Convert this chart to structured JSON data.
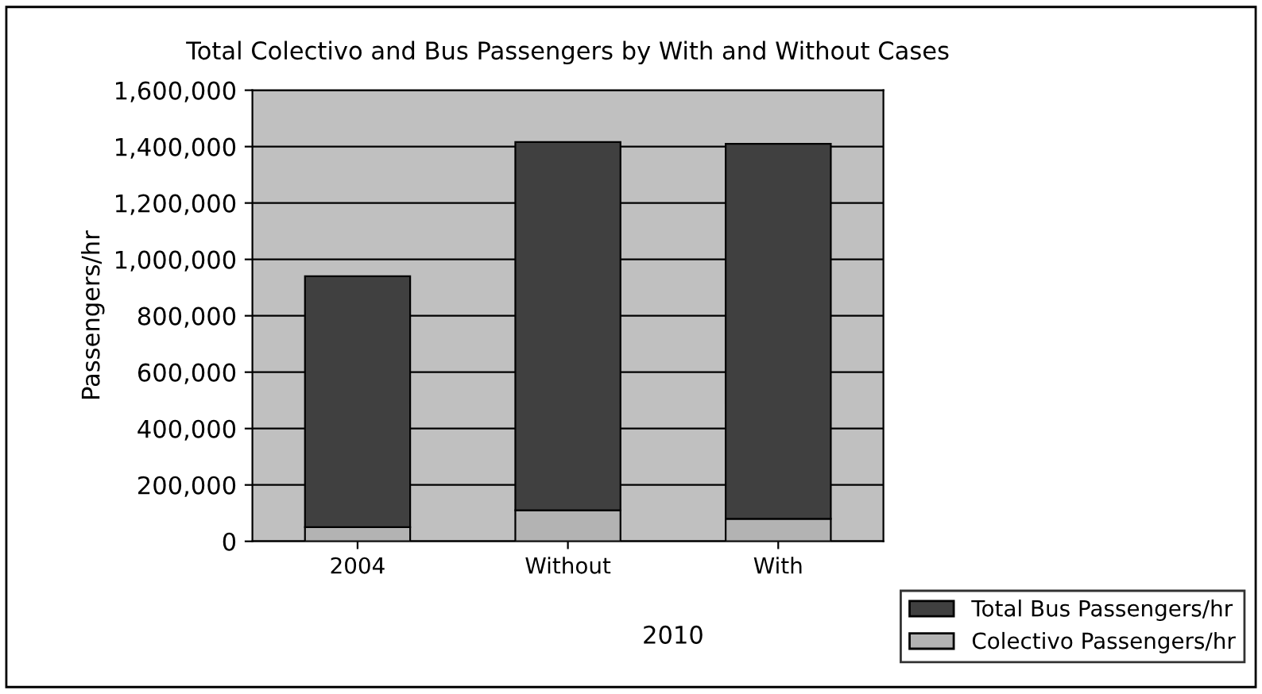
{
  "chart_data": {
    "type": "bar",
    "stacked": true,
    "title": "Total Colectivo and Bus Passengers by With and Without Cases",
    "ylabel": "Passengers/hr",
    "categories": [
      "2004",
      "Without",
      "With"
    ],
    "series": [
      {
        "name": "Colectivo Passengers/hr",
        "color": "#b3b3b3",
        "values": [
          50000,
          110000,
          80000
        ]
      },
      {
        "name": "Total Bus Passengers/hr",
        "color": "#404040",
        "values": [
          890000,
          1306000,
          1330000
        ]
      }
    ],
    "annotations": [
      "2010"
    ],
    "ylim": [
      0,
      1600000
    ],
    "yticks": [
      {
        "value": 0,
        "label": "0"
      },
      {
        "value": 200000,
        "label": "200,000"
      },
      {
        "value": 400000,
        "label": "400,000"
      },
      {
        "value": 600000,
        "label": "600,000"
      },
      {
        "value": 800000,
        "label": "800,000"
      },
      {
        "value": 1000000,
        "label": "1,000,000"
      },
      {
        "value": 1200000,
        "label": "1,200,000"
      },
      {
        "value": 1400000,
        "label": "1,400,000"
      },
      {
        "value": 1600000,
        "label": "1,600,000"
      }
    ],
    "grid": "y",
    "legend": "bottom right"
  }
}
